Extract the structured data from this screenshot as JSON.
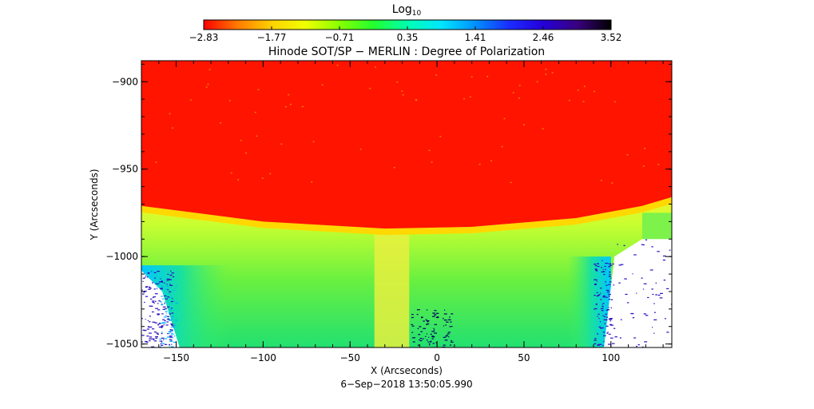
{
  "chart_data": {
    "type": "heatmap",
    "title": "Hinode SOT/SP − MERLIN : Degree of Polarization",
    "xlabel": "X (Arcseconds)",
    "ylabel": "Y (Arcseconds)",
    "xlim": [
      -170,
      135
    ],
    "ylim": [
      -1052,
      -888
    ],
    "x_ticks": [
      -150,
      -100,
      -50,
      0,
      50,
      100
    ],
    "x_tick_labels": [
      "−150",
      "−100",
      "−50",
      "0",
      "50",
      "100"
    ],
    "y_ticks": [
      -900,
      -950,
      -1000,
      -1050
    ],
    "y_tick_labels": [
      "−900",
      "−950",
      "−1000",
      "−1050"
    ],
    "footer": "6−Sep−2018 13:50:05.990",
    "colorbar": {
      "label_base": "Log",
      "label_sub": "10",
      "range": [
        -2.83,
        3.52
      ],
      "ticks": [
        "−2.83",
        "−1.77",
        "−0.71",
        "0.35",
        "1.41",
        "2.46",
        "3.52"
      ],
      "colors": [
        "#ff0000",
        "#ff7a00",
        "#ffd200",
        "#f0ff00",
        "#88ff00",
        "#22ff2e",
        "#00ffb0",
        "#00e6ff",
        "#0090ff",
        "#1a2cff",
        "#2400d8",
        "#3a0080",
        "#000000"
      ]
    },
    "regions": {
      "disk_color": "#ff1400",
      "limb_band_color": "#ffd800",
      "offlimb_inner_color": "#d6ff2c",
      "offlimb_outer_color": "#1ee070",
      "noise_color": "#2a10c0",
      "vertical_strip_color": "#e8f040",
      "limb_y_at_x": [
        [
          -170,
          -971
        ],
        [
          -100,
          -980
        ],
        [
          -30,
          -984
        ],
        [
          20,
          -983
        ],
        [
          80,
          -978
        ],
        [
          118,
          -971
        ],
        [
          135,
          -966
        ]
      ]
    }
  }
}
